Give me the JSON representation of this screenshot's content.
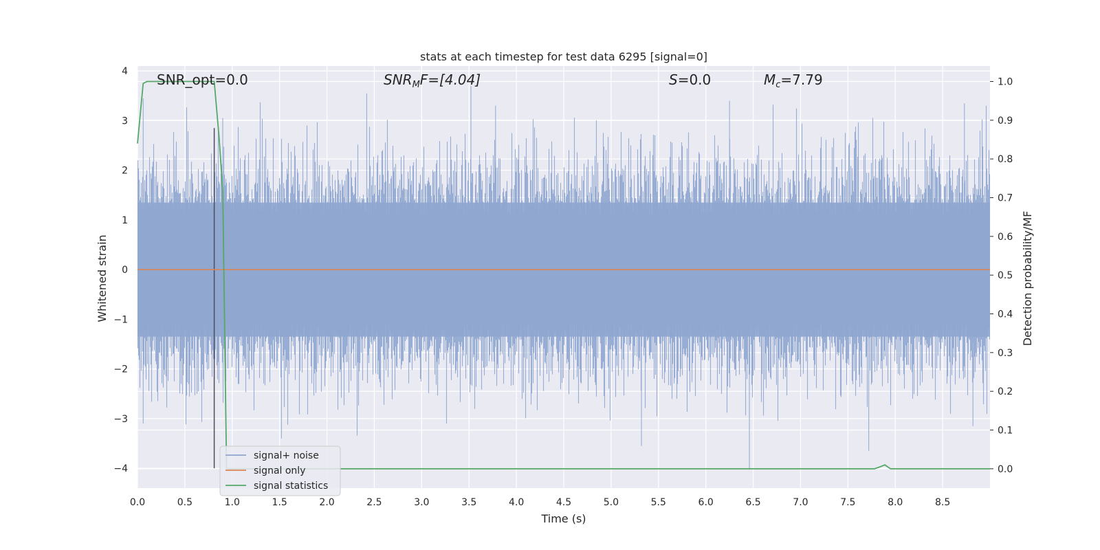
{
  "chart_data": {
    "type": "line",
    "title": "stats at each timestep for test data 6295 [signal=0]",
    "xlabel": "Time (s)",
    "ylabel": "Whitened strain",
    "y2label": "Detection probability/MF",
    "xlim": [
      0.0,
      9.0
    ],
    "ylim": [
      -4.4,
      4.1
    ],
    "y2lim": [
      -0.05,
      1.04
    ],
    "x_ticks": [
      "0.0",
      "0.5",
      "1.0",
      "1.5",
      "2.0",
      "2.5",
      "3.0",
      "3.5",
      "4.0",
      "4.5",
      "5.0",
      "5.5",
      "6.0",
      "6.5",
      "7.0",
      "7.5",
      "8.0",
      "8.5"
    ],
    "y_ticks": [
      "4",
      "3",
      "2",
      "1",
      "0",
      "−1",
      "−2",
      "−3",
      "−4"
    ],
    "y2_ticks": [
      "1.0",
      "0.9",
      "0.8",
      "0.7",
      "0.6",
      "0.5",
      "0.4",
      "0.3",
      "0.2",
      "0.1",
      "0.0"
    ],
    "grid": true,
    "legend_position": "lower-left",
    "annotations": {
      "snr_opt": "SNR_opt=0.0",
      "snr_mf_main": "SNR",
      "snr_mf_sub": "M",
      "snr_mf_rest": "F=[4.04]",
      "s_main": "S",
      "s_rest": "=0.0",
      "mc_main": "M",
      "mc_sub": "c",
      "mc_rest": "=7.79"
    },
    "vline_x": 0.81,
    "series": [
      {
        "name": "signal+ noise",
        "color": "#8fa6cf",
        "description_range": [
          -4.0,
          3.7
        ],
        "peak_samples": [
          {
            "x": 0.06,
            "y": 3.45
          },
          {
            "x": 0.81,
            "y": 2.85
          },
          {
            "x": 0.9,
            "y": 3.05
          },
          {
            "x": 2.42,
            "y": 3.55
          },
          {
            "x": 3.52,
            "y": 3.7
          },
          {
            "x": 3.78,
            "y": 3.3
          },
          {
            "x": 6.25,
            "y": 3.4
          },
          {
            "x": 8.73,
            "y": 3.35
          },
          {
            "x": 8.96,
            "y": 3.3
          },
          {
            "x": 0.06,
            "y": -3.1
          },
          {
            "x": 1.52,
            "y": -3.4
          },
          {
            "x": 5.32,
            "y": -3.55
          },
          {
            "x": 6.46,
            "y": -4.0
          },
          {
            "x": 7.72,
            "y": -3.65
          },
          {
            "x": 8.82,
            "y": -3.15
          }
        ]
      },
      {
        "name": "signal only",
        "color": "#dd8452",
        "x": [
          0.0,
          9.0
        ],
        "y": [
          0.0,
          0.0
        ]
      },
      {
        "name": "signal statistics",
        "color": "#55a868",
        "axis": "right",
        "x": [
          0.0,
          0.06,
          0.1,
          0.81,
          0.86,
          0.9,
          0.94,
          7.78,
          7.84,
          7.89,
          7.95,
          9.0
        ],
        "y": [
          0.84,
          0.995,
          1.0,
          1.0,
          0.86,
          0.72,
          0.0,
          0.0,
          0.005,
          0.01,
          0.0,
          0.0
        ]
      }
    ]
  }
}
